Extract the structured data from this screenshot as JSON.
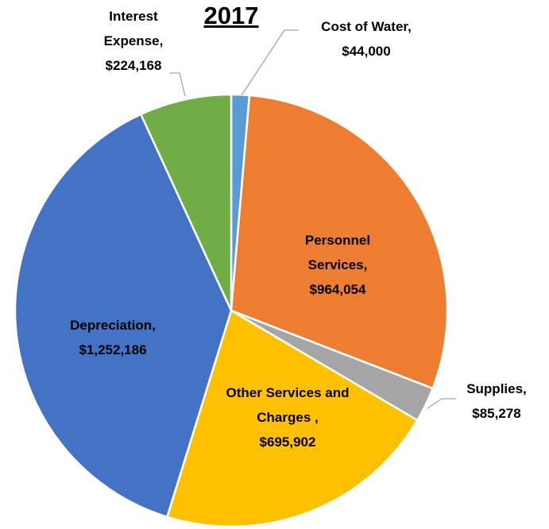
{
  "chart_data": {
    "type": "pie",
    "title": "2017",
    "categories": [
      "Cost of Water,",
      "Personnel Services,",
      "Supplies,",
      "Other Services and Charges ,",
      "Depreciation,",
      "Interest Expense,"
    ],
    "values": [
      44000,
      964054,
      85278,
      695902,
      1252186,
      224168
    ],
    "value_labels": [
      "$44,000",
      "$964,054",
      "$85,278",
      "$695,902",
      "$1,252,186",
      "$224,168"
    ],
    "colors": [
      "#5b9bd5",
      "#ed7d31",
      "#a5a5a5",
      "#ffc000",
      "#4472c4",
      "#70ad47"
    ]
  }
}
